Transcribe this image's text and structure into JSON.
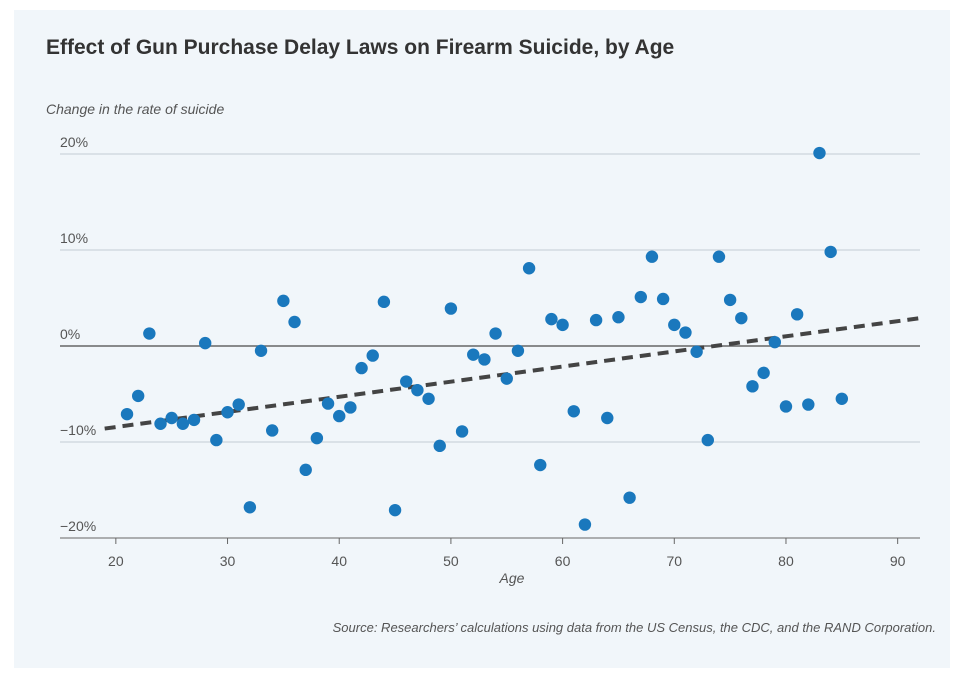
{
  "chart_data": {
    "type": "scatter",
    "title": "Effect of Gun Purchase Delay Laws on Firearm Suicide, by Age",
    "ylabel": "Change in the rate of suicide",
    "xlabel": "Age",
    "source": "Source: Researchers’ calculations using data from the US Census, the CDC, and the RAND Corporation.",
    "xlim": [
      15,
      92
    ],
    "ylim": [
      -20,
      20
    ],
    "xticks": [
      20,
      30,
      40,
      50,
      60,
      70,
      80,
      90
    ],
    "yticks": [
      20,
      10,
      0,
      -10,
      -20
    ],
    "ytick_labels": [
      "20%",
      "10%",
      "0%",
      "−10%",
      "−20%"
    ],
    "grid": true,
    "colors": {
      "points": "#1a78bd",
      "trend": "#444444",
      "grid": "#c3ccd4",
      "zero": "#666666"
    },
    "trend_line": {
      "style": "dashed",
      "x": [
        19,
        92
      ],
      "y": [
        -8.6,
        2.9
      ]
    },
    "x": [
      21,
      22,
      23,
      24,
      25,
      26,
      27,
      28,
      29,
      30,
      31,
      32,
      33,
      34,
      35,
      36,
      37,
      38,
      39,
      40,
      41,
      42,
      43,
      44,
      45,
      46,
      47,
      48,
      49,
      50,
      51,
      52,
      53,
      54,
      55,
      56,
      57,
      58,
      59,
      60,
      61,
      62,
      63,
      64,
      65,
      66,
      67,
      68,
      69,
      70,
      71,
      72,
      73,
      74,
      75,
      76,
      77,
      78,
      79,
      80,
      81,
      82,
      83,
      84,
      85
    ],
    "y": [
      -7.1,
      -5.2,
      1.3,
      -8.1,
      -7.5,
      -8.1,
      -7.7,
      0.3,
      -9.8,
      -6.9,
      -6.1,
      -16.8,
      -0.5,
      -8.8,
      4.7,
      2.5,
      -12.9,
      -9.6,
      -6.0,
      -7.3,
      -6.4,
      -2.3,
      -1.0,
      4.6,
      -17.1,
      -3.7,
      -4.6,
      -5.5,
      -10.4,
      3.9,
      -8.9,
      -0.9,
      -1.4,
      1.3,
      -3.4,
      -0.5,
      8.1,
      -12.4,
      2.8,
      2.2,
      -6.8,
      -18.6,
      2.7,
      -7.5,
      3.0,
      -15.8,
      5.1,
      9.3,
      4.9,
      2.2,
      1.4,
      -0.6,
      -9.8,
      9.3,
      4.8,
      2.9,
      -4.2,
      -2.8,
      0.4,
      -6.3,
      3.3,
      -6.1,
      20.1,
      9.8,
      -5.5
    ]
  }
}
